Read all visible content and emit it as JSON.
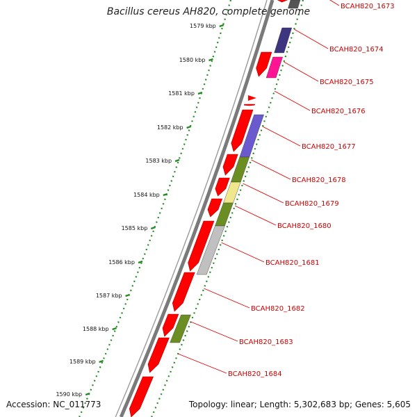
{
  "title": "Bacillus cereus AH820, complete genome",
  "accession": "Accession: NC_011773",
  "summary": "Topology: linear; Length: 5,302,683 bp; Genes: 5,605",
  "ticks": [
    {
      "label": "1579 kbp"
    },
    {
      "label": "1580 kbp"
    },
    {
      "label": "1581 kbp"
    },
    {
      "label": "1582 kbp"
    },
    {
      "label": "1583 kbp"
    },
    {
      "label": "1584 kbp"
    },
    {
      "label": "1585 kbp"
    },
    {
      "label": "1586 kbp"
    },
    {
      "label": "1587 kbp"
    },
    {
      "label": "1588 kbp"
    },
    {
      "label": "1589 kbp"
    },
    {
      "label": "1590 kbp"
    }
  ],
  "genes": [
    {
      "label": "BCAH820_1673",
      "cog_color": "#555555"
    },
    {
      "label": "BCAH820_1674",
      "cog_color": "#3d3580"
    },
    {
      "label": "BCAH820_1675",
      "cog_color": "#ff1493"
    },
    {
      "label": "BCAH820_1676",
      "cog_color": "#ff0000"
    },
    {
      "label": "BCAH820_1677",
      "cog_color": "#6a5acd"
    },
    {
      "label": "BCAH820_1678",
      "cog_color": "#6b8e23"
    },
    {
      "label": "BCAH820_1679",
      "cog_color": "#f0e68c"
    },
    {
      "label": "BCAH820_1680",
      "cog_color": "#6b8e23"
    },
    {
      "label": "BCAH820_1681",
      "cog_color": "#c0c0c0"
    },
    {
      "label": "BCAH820_1682",
      "cog_color": "#ff0000"
    },
    {
      "label": "BCAH820_1683",
      "cog_color": "#6b8e23"
    },
    {
      "label": "BCAH820_1684",
      "cog_color": "#ff0000"
    }
  ],
  "colors": {
    "gene_forward": "#ff0000",
    "label": "#d00000",
    "tick_dots": "#228b22",
    "backbone": "#808080"
  }
}
